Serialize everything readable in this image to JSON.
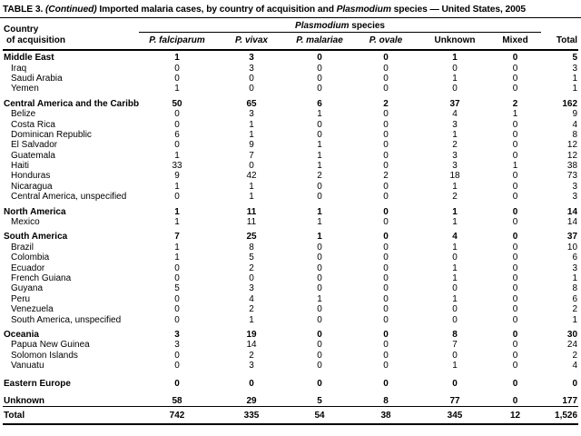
{
  "title": {
    "segments": [
      {
        "text": "TABLE 3. ",
        "italic": false
      },
      {
        "text": "(Continued)",
        "italic": true
      },
      {
        "text": " Imported malaria cases, by country of acquisition and ",
        "italic": false
      },
      {
        "text": "Plasmodium",
        "italic": true
      },
      {
        "text": " species — United States, 2005",
        "italic": false
      }
    ]
  },
  "table": {
    "corner_header": {
      "line1": "Country",
      "line2": "of acquisition"
    },
    "spanner_segments": [
      {
        "text": "Plasmodium",
        "italic": true
      },
      {
        "text": " species",
        "italic": false
      }
    ],
    "species_columns": [
      {
        "label": "P. falciparum",
        "italic": true
      },
      {
        "label": "P. vivax",
        "italic": true
      },
      {
        "label": "P. malariae",
        "italic": true
      },
      {
        "label": "P. ovale",
        "italic": true
      },
      {
        "label": "Unknown",
        "italic": false
      },
      {
        "label": "Mixed",
        "italic": false
      }
    ],
    "total_column_label": "Total",
    "groups": [
      {
        "label": "Middle East",
        "values": [
          "1",
          "3",
          "0",
          "0",
          "1",
          "0",
          "5"
        ],
        "children": [
          {
            "label": "Iraq",
            "values": [
              "0",
              "3",
              "0",
              "0",
              "0",
              "0",
              "3"
            ]
          },
          {
            "label": "Saudi Arabia",
            "values": [
              "0",
              "0",
              "0",
              "0",
              "1",
              "0",
              "1"
            ]
          },
          {
            "label": "Yemen",
            "values": [
              "1",
              "0",
              "0",
              "0",
              "0",
              "0",
              "1"
            ]
          }
        ]
      },
      {
        "label": "Central America and the Caribbean",
        "values": [
          "50",
          "65",
          "6",
          "2",
          "37",
          "2",
          "162"
        ],
        "children": [
          {
            "label": "Belize",
            "values": [
              "0",
              "3",
              "1",
              "0",
              "4",
              "1",
              "9"
            ]
          },
          {
            "label": "Costa Rica",
            "values": [
              "0",
              "1",
              "0",
              "0",
              "3",
              "0",
              "4"
            ]
          },
          {
            "label": "Dominican Republic",
            "values": [
              "6",
              "1",
              "0",
              "0",
              "1",
              "0",
              "8"
            ]
          },
          {
            "label": "El Salvador",
            "values": [
              "0",
              "9",
              "1",
              "0",
              "2",
              "0",
              "12"
            ]
          },
          {
            "label": "Guatemala",
            "values": [
              "1",
              "7",
              "1",
              "0",
              "3",
              "0",
              "12"
            ]
          },
          {
            "label": "Haiti",
            "values": [
              "33",
              "0",
              "1",
              "0",
              "3",
              "1",
              "38"
            ]
          },
          {
            "label": "Honduras",
            "values": [
              "9",
              "42",
              "2",
              "2",
              "18",
              "0",
              "73"
            ]
          },
          {
            "label": "Nicaragua",
            "values": [
              "1",
              "1",
              "0",
              "0",
              "1",
              "0",
              "3"
            ]
          },
          {
            "label": "Central America, unspecified",
            "values": [
              "0",
              "1",
              "0",
              "0",
              "2",
              "0",
              "3"
            ]
          }
        ]
      },
      {
        "label": "North America",
        "values": [
          "1",
          "11",
          "1",
          "0",
          "1",
          "0",
          "14"
        ],
        "children": [
          {
            "label": "Mexico",
            "values": [
              "1",
              "11",
              "1",
              "0",
              "1",
              "0",
              "14"
            ]
          }
        ]
      },
      {
        "label": "South America",
        "values": [
          "7",
          "25",
          "1",
          "0",
          "4",
          "0",
          "37"
        ],
        "children": [
          {
            "label": "Brazil",
            "values": [
              "1",
              "8",
              "0",
              "0",
              "1",
              "0",
              "10"
            ]
          },
          {
            "label": "Colombia",
            "values": [
              "1",
              "5",
              "0",
              "0",
              "0",
              "0",
              "6"
            ]
          },
          {
            "label": "Ecuador",
            "values": [
              "0",
              "2",
              "0",
              "0",
              "1",
              "0",
              "3"
            ]
          },
          {
            "label": "French Guiana",
            "values": [
              "0",
              "0",
              "0",
              "0",
              "1",
              "0",
              "1"
            ]
          },
          {
            "label": "Guyana",
            "values": [
              "5",
              "3",
              "0",
              "0",
              "0",
              "0",
              "8"
            ]
          },
          {
            "label": "Peru",
            "values": [
              "0",
              "4",
              "1",
              "0",
              "1",
              "0",
              "6"
            ]
          },
          {
            "label": "Venezuela",
            "values": [
              "0",
              "2",
              "0",
              "0",
              "0",
              "0",
              "2"
            ]
          },
          {
            "label": "South America, unspecified",
            "values": [
              "0",
              "1",
              "0",
              "0",
              "0",
              "0",
              "1"
            ]
          }
        ]
      },
      {
        "label": "Oceania",
        "values": [
          "3",
          "19",
          "0",
          "0",
          "8",
          "0",
          "30"
        ],
        "children": [
          {
            "label": "Papua New Guinea",
            "values": [
              "3",
              "14",
              "0",
              "0",
              "7",
              "0",
              "24"
            ]
          },
          {
            "label": "Solomon Islands",
            "values": [
              "0",
              "2",
              "0",
              "0",
              "0",
              "0",
              "2"
            ]
          },
          {
            "label": "Vanuatu",
            "values": [
              "0",
              "3",
              "0",
              "0",
              "1",
              "0",
              "4"
            ]
          }
        ]
      },
      {
        "label": "Eastern Europe",
        "values": [
          "0",
          "0",
          "0",
          "0",
          "0",
          "0",
          "0"
        ],
        "children": []
      },
      {
        "label": "Unknown",
        "values": [
          "58",
          "29",
          "5",
          "8",
          "77",
          "0",
          "177"
        ],
        "children": []
      }
    ],
    "total_row": {
      "label": "Total",
      "values": [
        "742",
        "335",
        "54",
        "38",
        "345",
        "12",
        "1,526"
      ]
    }
  },
  "colors": {
    "background": "#ffffff",
    "text": "#000000",
    "rule": "#000000"
  }
}
